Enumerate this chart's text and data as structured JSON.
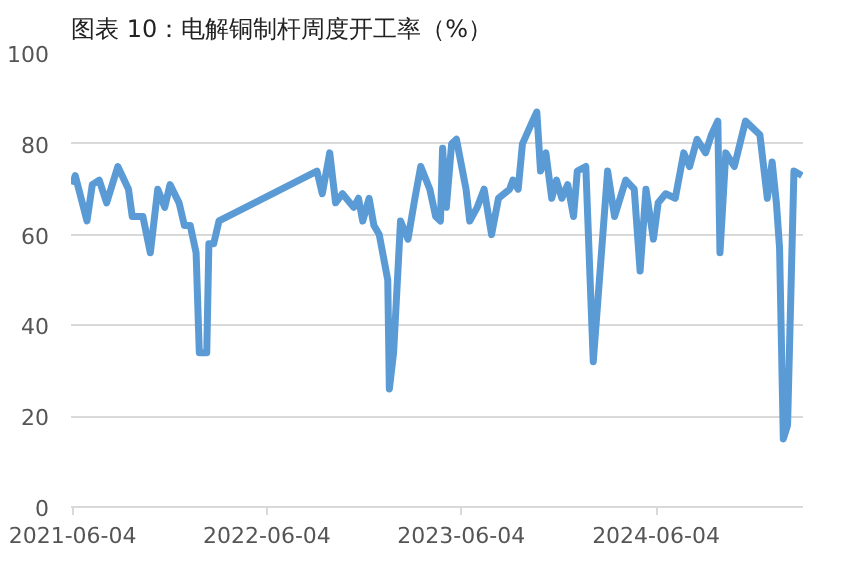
{
  "chart_data": {
    "type": "line",
    "title": "图表 10：电解铜制杆周度开工率（%）",
    "x": [
      "2021-06-04",
      "2021-06-09",
      "2021-07-01",
      "2021-07-11",
      "2021-07-24",
      "2021-08-07",
      "2021-08-28",
      "2021-09-17",
      "2021-09-24",
      "2021-10-14",
      "2021-10-28",
      "2021-11-11",
      "2021-11-24",
      "2021-12-04",
      "2021-12-21",
      "2021-12-31",
      "2022-01-11",
      "2022-01-22",
      "2022-01-28",
      "2022-02-11",
      "2022-02-15",
      "2022-02-24",
      "2022-03-06",
      "2022-09-06",
      "2022-09-16",
      "2022-09-30",
      "2022-10-11",
      "2022-10-24",
      "2022-11-14",
      "2022-11-23",
      "2022-12-01",
      "2022-12-13",
      "2022-12-22",
      "2023-01-01",
      "2023-01-17",
      "2023-01-20",
      "2023-01-28",
      "2023-02-10",
      "2023-02-24",
      "2023-03-09",
      "2023-03-20",
      "2023-04-06",
      "2023-04-17",
      "2023-04-26",
      "2023-04-30",
      "2023-05-07",
      "2023-05-17",
      "2023-05-26",
      "2023-06-13",
      "2023-06-20",
      "2023-07-04",
      "2023-07-17",
      "2023-07-31",
      "2023-08-13",
      "2023-09-03",
      "2023-09-09",
      "2023-09-19",
      "2023-09-27",
      "2023-10-16",
      "2023-10-24",
      "2023-10-31",
      "2023-11-10",
      "2023-11-21",
      "2023-11-30",
      "2023-12-10",
      "2023-12-21",
      "2024-01-01",
      "2024-01-08",
      "2024-01-24",
      "2024-02-07",
      "2024-03-05",
      "2024-03-18",
      "2024-04-08",
      "2024-04-24",
      "2024-05-05",
      "2024-05-16",
      "2024-05-30",
      "2024-06-08",
      "2024-06-22",
      "2024-07-10",
      "2024-07-26",
      "2024-08-06",
      "2024-08-20",
      "2024-09-05",
      "2024-09-16",
      "2024-09-28",
      "2024-10-02",
      "2024-10-13",
      "2024-10-29",
      "2024-11-19",
      "2024-12-16",
      "2024-12-30",
      "2025-01-08",
      "2025-01-16",
      "2025-01-22",
      "2025-01-29",
      "2025-02-06",
      "2025-02-18",
      "2025-03-05"
    ],
    "series": [
      {
        "color": "#5b9bd5",
        "values": [
          71,
          73,
          63,
          71,
          72,
          67,
          75,
          70,
          64,
          64,
          56,
          70,
          66,
          71,
          67,
          62,
          62,
          56,
          34,
          34,
          58,
          58,
          63,
          74,
          69,
          78,
          67,
          69,
          66,
          68,
          63,
          68,
          62,
          60,
          50,
          26,
          34,
          63,
          59,
          68,
          75,
          70,
          64,
          63,
          79,
          66,
          80,
          81,
          70,
          63,
          66,
          70,
          60,
          68,
          70,
          72,
          70,
          80,
          85,
          87,
          74,
          78,
          68,
          72,
          68,
          71,
          64,
          74,
          75,
          32,
          74,
          64,
          72,
          70,
          52,
          70,
          59,
          67,
          69,
          68,
          78,
          75,
          81,
          78,
          82,
          85,
          56,
          78,
          75,
          85,
          82,
          68,
          76,
          67,
          57,
          15,
          18,
          74,
          73
        ]
      }
    ],
    "xlim": [
      "2021-06-01",
      "2025-03-07"
    ],
    "xticks": [
      "2021-06-04",
      "2022-06-04",
      "2023-06-04",
      "2024-06-04"
    ],
    "ylim": [
      0,
      100
    ],
    "yticks": [
      0,
      20,
      40,
      60,
      80,
      100
    ],
    "grid": "y",
    "line_style": "solid"
  }
}
